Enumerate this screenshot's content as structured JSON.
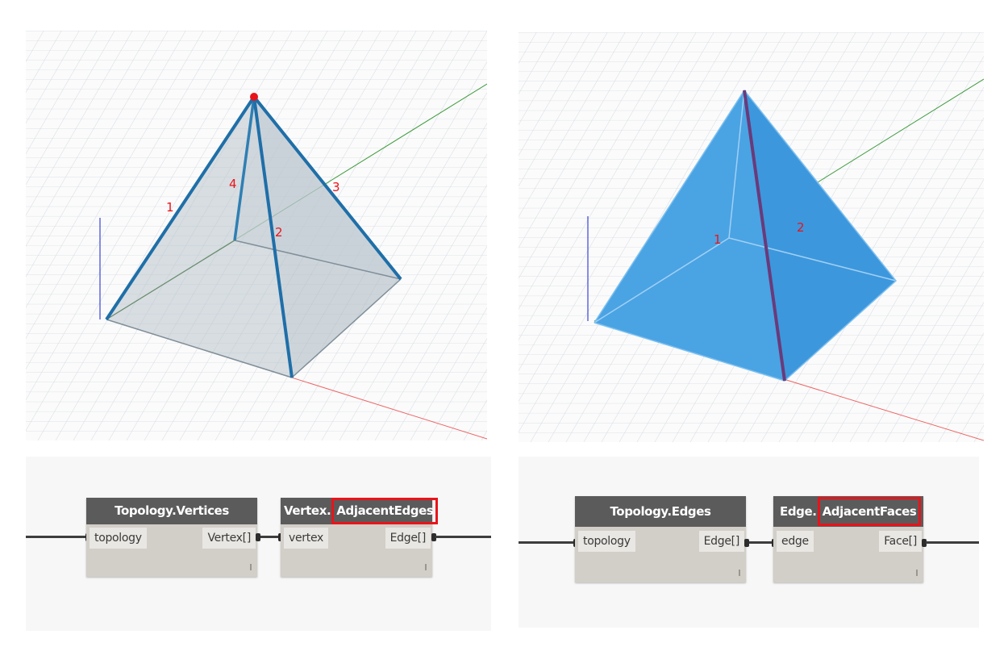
{
  "left_viewport": {
    "edge_labels": [
      "1",
      "2",
      "3",
      "4"
    ],
    "selected_vertex_color": "#e8141a",
    "edge_color": "#1f6fa8"
  },
  "right_viewport": {
    "face_labels": [
      "1",
      "2"
    ],
    "face_color": "#3d97dc",
    "selected_edge_color": "#6a3a7a"
  },
  "left_graph": {
    "node1": {
      "title": "Topology.Vertices",
      "input": "topology",
      "output": "Vertex[]"
    },
    "node2": {
      "title_prefix": "Vertex.",
      "title_highlight": "AdjacentEdges",
      "input": "vertex",
      "output": "Edge[]"
    }
  },
  "right_graph": {
    "node1": {
      "title": "Topology.Edges",
      "input": "topology",
      "output": "Edge[]"
    },
    "node2": {
      "title_prefix": "Edge.",
      "title_highlight": "AdjacentFaces",
      "input": "edge",
      "output": "Face[]"
    }
  },
  "highlight_color": "#e8141a"
}
